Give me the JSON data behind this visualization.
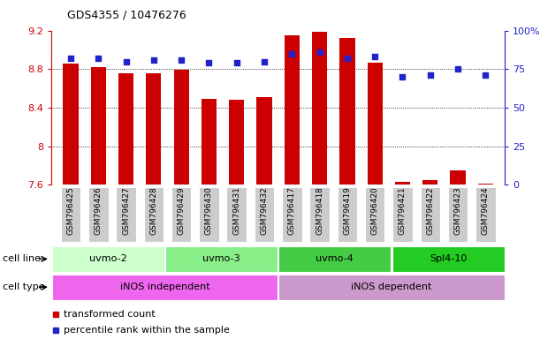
{
  "title": "GDS4355 / 10476276",
  "samples": [
    "GSM796425",
    "GSM796426",
    "GSM796427",
    "GSM796428",
    "GSM796429",
    "GSM796430",
    "GSM796431",
    "GSM796432",
    "GSM796417",
    "GSM796418",
    "GSM796419",
    "GSM796420",
    "GSM796421",
    "GSM796422",
    "GSM796423",
    "GSM796424"
  ],
  "transformed_count": [
    8.86,
    8.82,
    8.76,
    8.76,
    8.79,
    8.49,
    8.48,
    8.51,
    9.15,
    9.19,
    9.12,
    8.87,
    7.63,
    7.65,
    7.75,
    7.61
  ],
  "percentile_rank": [
    82,
    82,
    80,
    81,
    81,
    79,
    79,
    80,
    85,
    86,
    82,
    83,
    70,
    71,
    75,
    71
  ],
  "ylim_left": [
    7.6,
    9.2
  ],
  "ylim_right": [
    0,
    100
  ],
  "yticks_left": [
    7.6,
    8.0,
    8.4,
    8.8,
    9.2
  ],
  "yticks_right": [
    0,
    25,
    50,
    75,
    100
  ],
  "ytick_labels_left": [
    "7.6",
    "8",
    "8.4",
    "8.8",
    "9.2"
  ],
  "ytick_labels_right": [
    "0",
    "25",
    "50",
    "75",
    "100%"
  ],
  "grid_lines": [
    8.0,
    8.4,
    8.8
  ],
  "bar_color": "#cc0000",
  "dot_color": "#2222cc",
  "cell_line_groups": [
    {
      "label": "uvmo-2",
      "start": 0,
      "end": 4,
      "color": "#ccffcc"
    },
    {
      "label": "uvmo-3",
      "start": 4,
      "end": 8,
      "color": "#88ee88"
    },
    {
      "label": "uvmo-4",
      "start": 8,
      "end": 12,
      "color": "#44cc44"
    },
    {
      "label": "Spl4-10",
      "start": 12,
      "end": 16,
      "color": "#22cc22"
    }
  ],
  "cell_type_groups": [
    {
      "label": "iNOS independent",
      "start": 0,
      "end": 8,
      "color": "#ee66ee"
    },
    {
      "label": "iNOS dependent",
      "start": 8,
      "end": 16,
      "color": "#cc99cc"
    }
  ],
  "legend_items": [
    {
      "label": "transformed count",
      "color": "#cc0000"
    },
    {
      "label": "percentile rank within the sample",
      "color": "#2222cc"
    }
  ],
  "bar_width": 0.55,
  "ybase": 7.6,
  "label_box_color": "#cccccc"
}
